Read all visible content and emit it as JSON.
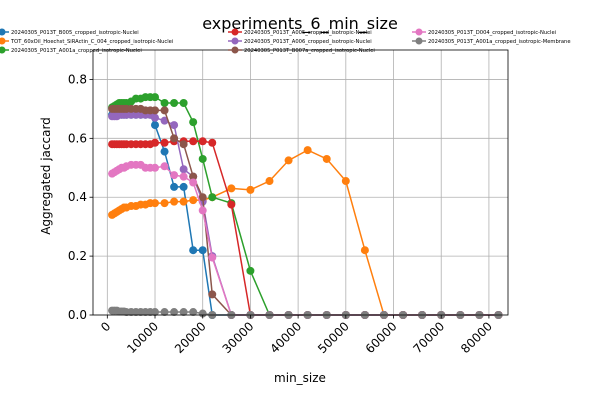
{
  "chart_data": {
    "type": "line",
    "title": "experiments_6_min_size",
    "xlabel": "min_size",
    "ylabel": "Aggregated jaccard",
    "xlim": [
      -3000,
      84000
    ],
    "ylim": [
      0,
      0.9
    ],
    "xticks": [
      0,
      10000,
      20000,
      30000,
      40000,
      50000,
      60000,
      70000,
      80000
    ],
    "yticks": [
      0.0,
      0.2,
      0.4,
      0.6,
      0.8
    ],
    "ytick_labels": [
      "0.0",
      "0.2",
      "0.4",
      "0.6",
      "0.8"
    ],
    "grid": true,
    "legend_position": "top",
    "x": [
      1000,
      1500,
      2000,
      2500,
      3000,
      3500,
      4000,
      5000,
      6000,
      7000,
      8000,
      9000,
      10000,
      12000,
      14000,
      16000,
      18000,
      20000,
      22000,
      26000,
      30000,
      34000,
      38000,
      42000,
      46000,
      50000,
      54000,
      58000,
      62000,
      66000,
      70000,
      74000,
      78000,
      82000
    ],
    "series": [
      {
        "name": "20240305_P013T_B005_cropped_isotropic-Nuclei",
        "color": "#1f77b4",
        "values": [
          0.68,
          0.68,
          0.68,
          0.68,
          0.68,
          0.68,
          0.68,
          0.68,
          0.68,
          0.68,
          0.68,
          0.68,
          0.645,
          0.555,
          0.435,
          0.435,
          0.22,
          0.22,
          0,
          0,
          0,
          0,
          0,
          0,
          0,
          0,
          0,
          0,
          0,
          0,
          0,
          0,
          0,
          0
        ]
      },
      {
        "name": "TOT_60xOil_Hoechst_SiRActin_C_004_cropped_isotropic-Nuclei",
        "color": "#ff7f0e",
        "values": [
          0.34,
          0.345,
          0.35,
          0.355,
          0.36,
          0.365,
          0.365,
          0.37,
          0.37,
          0.375,
          0.375,
          0.38,
          0.38,
          0.38,
          0.385,
          0.385,
          0.39,
          0.39,
          0.4,
          0.43,
          0.425,
          0.455,
          0.525,
          0.56,
          0.53,
          0.455,
          0.22,
          0,
          0,
          0,
          0,
          0,
          0,
          0
        ]
      },
      {
        "name": "20240305_P013T_A001a_cropped_isotropic-Nuclei",
        "color": "#2ca02c",
        "values": [
          0.705,
          0.71,
          0.715,
          0.72,
          0.72,
          0.72,
          0.72,
          0.725,
          0.735,
          0.735,
          0.74,
          0.74,
          0.74,
          0.72,
          0.72,
          0.72,
          0.655,
          0.53,
          0.4,
          0.38,
          0.15,
          0,
          0,
          0,
          0,
          0,
          0,
          0,
          0,
          0,
          0,
          0,
          0,
          0
        ]
      },
      {
        "name": "20240305_P013T_A005_cropped_isotropic-Nuclei",
        "color": "#d62728",
        "values": [
          0.58,
          0.58,
          0.58,
          0.58,
          0.58,
          0.58,
          0.58,
          0.58,
          0.58,
          0.58,
          0.58,
          0.58,
          0.585,
          0.585,
          0.59,
          0.59,
          0.59,
          0.59,
          0.585,
          0.375,
          0,
          0,
          0,
          0,
          0,
          0,
          0,
          0,
          0,
          0,
          0,
          0,
          0,
          0
        ]
      },
      {
        "name": "20240305_P013T_A006_cropped_isotropic-Nuclei",
        "color": "#9467bd",
        "values": [
          0.675,
          0.675,
          0.675,
          0.68,
          0.68,
          0.68,
          0.68,
          0.68,
          0.68,
          0.68,
          0.68,
          0.68,
          0.67,
          0.66,
          0.645,
          0.495,
          0.47,
          0.385,
          0.2,
          0,
          0,
          0,
          0,
          0,
          0,
          0,
          0,
          0,
          0,
          0,
          0,
          0,
          0,
          0
        ]
      },
      {
        "name": "20240305_P013T_B007a_cropped_isotropic-Nuclei",
        "color": "#8c564b",
        "values": [
          0.7,
          0.7,
          0.7,
          0.7,
          0.7,
          0.7,
          0.7,
          0.7,
          0.7,
          0.7,
          0.695,
          0.695,
          0.695,
          0.695,
          0.6,
          0.58,
          0.47,
          0.4,
          0.07,
          0,
          0,
          0,
          0,
          0,
          0,
          0,
          0,
          0,
          0,
          0,
          0,
          0,
          0,
          0
        ]
      },
      {
        "name": "20240305_P013T_D004_cropped_isotropic-Nuclei",
        "color": "#e377c2",
        "values": [
          0.48,
          0.485,
          0.49,
          0.495,
          0.5,
          0.5,
          0.505,
          0.51,
          0.51,
          0.51,
          0.5,
          0.5,
          0.5,
          0.505,
          0.475,
          0.47,
          0.45,
          0.355,
          0.195,
          0,
          0,
          0,
          0,
          0,
          0,
          0,
          0,
          0,
          0,
          0,
          0,
          0,
          0,
          0
        ]
      },
      {
        "name": "20240305_P013T_A001a_cropped_isotropic-Membrane",
        "color": "#7f7f7f",
        "values": [
          0.015,
          0.015,
          0.015,
          0.012,
          0.012,
          0.012,
          0.01,
          0.01,
          0.01,
          0.01,
          0.01,
          0.01,
          0.01,
          0.01,
          0.01,
          0.01,
          0.01,
          0.005,
          0,
          0,
          0,
          0,
          0,
          0,
          0,
          0,
          0,
          0,
          0,
          0,
          0,
          0,
          0,
          0
        ]
      }
    ]
  }
}
